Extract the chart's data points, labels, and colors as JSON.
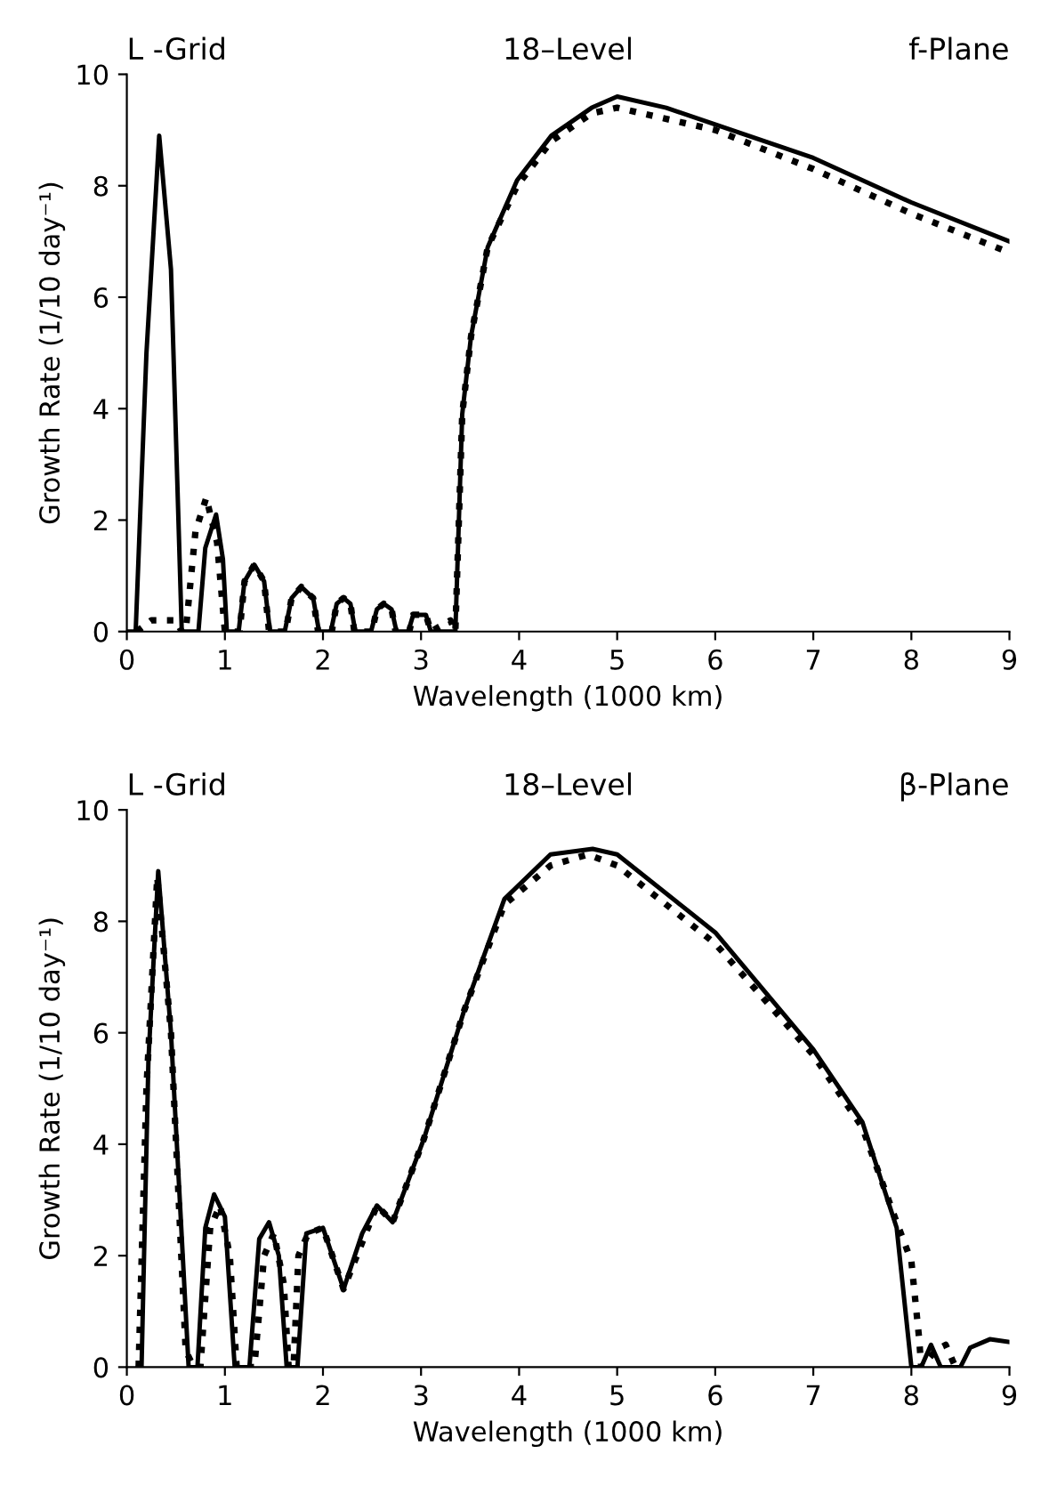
{
  "chart_data": [
    {
      "type": "line",
      "title": "18–Level",
      "annotations": [
        "L -Grid",
        "f-Plane"
      ],
      "xlabel": "Wavelength (1000 km)",
      "ylabel": "Growth Rate (1/10 day⁻¹)",
      "xlim": [
        0,
        9
      ],
      "ylim": [
        0,
        10
      ],
      "xticks": [
        0,
        1,
        2,
        3,
        4,
        5,
        6,
        7,
        8,
        9
      ],
      "yticks": [
        0,
        2,
        4,
        6,
        8,
        10
      ],
      "grid": false,
      "marker": "none",
      "series": [
        {
          "color": "#000000",
          "line_style": "solid",
          "x": [
            0,
            0.09,
            0.2,
            0.33,
            0.45,
            0.56,
            0.73,
            0.8,
            0.91,
            0.98,
            1.02,
            1.14,
            1.2,
            1.3,
            1.4,
            1.46,
            1.61,
            1.68,
            1.78,
            1.9,
            1.96,
            2.08,
            2.14,
            2.21,
            2.28,
            2.33,
            2.49,
            2.55,
            2.62,
            2.7,
            2.75,
            2.87,
            2.92,
            2.98,
            3.05,
            3.1,
            3.35,
            3.42,
            3.51,
            3.68,
            3.98,
            4.33,
            4.74,
            5.0,
            5.5,
            6,
            7,
            8,
            9
          ],
          "values": [
            0,
            0,
            5.0,
            8.9,
            6.5,
            0,
            0,
            1.5,
            2.1,
            1.3,
            0,
            0,
            0.9,
            1.2,
            0.9,
            0,
            0,
            0.6,
            0.8,
            0.6,
            0,
            0,
            0.5,
            0.6,
            0.5,
            0,
            0,
            0.4,
            0.5,
            0.4,
            0,
            0,
            0.3,
            0.3,
            0.3,
            0,
            0,
            3.9,
            5.3,
            6.9,
            8.1,
            8.9,
            9.4,
            9.6,
            9.4,
            9.1,
            8.5,
            7.7,
            7.0
          ]
        },
        {
          "color": "#000000",
          "line_style": "dotted",
          "x": [
            0.1,
            0.25,
            0.5,
            0.56,
            0.6,
            0.7,
            0.81,
            0.92,
            1.0,
            1.15,
            1.2,
            1.3,
            1.4,
            1.45,
            1.62,
            1.68,
            1.78,
            1.9,
            1.95,
            2.09,
            2.14,
            2.21,
            2.28,
            2.32,
            2.5,
            2.55,
            2.62,
            2.7,
            2.74,
            2.88,
            2.92,
            2.98,
            3.05,
            3.1,
            3.3,
            3.35,
            3.42,
            3.51,
            3.68,
            3.98,
            4.33,
            4.74,
            5.0,
            6,
            7,
            8,
            9
          ],
          "values": [
            0,
            0.2,
            0.2,
            0,
            0,
            1.8,
            2.4,
            1.6,
            0,
            0,
            0.9,
            1.2,
            0.9,
            0,
            0,
            0.6,
            0.8,
            0.6,
            0,
            0,
            0.5,
            0.6,
            0.5,
            0,
            0,
            0.4,
            0.5,
            0.4,
            0,
            0,
            0.3,
            0.3,
            0.3,
            0,
            0.2,
            0,
            3.9,
            5.3,
            6.9,
            8.0,
            8.8,
            9.3,
            9.4,
            9.0,
            8.3,
            7.5,
            6.8
          ]
        }
      ]
    },
    {
      "type": "line",
      "title": "18–Level",
      "annotations": [
        "L -Grid",
        "β-Plane"
      ],
      "xlabel": "Wavelength (1000 km)",
      "ylabel": "Growth Rate (1/10 day⁻¹)",
      "xlim": [
        0,
        9
      ],
      "ylim": [
        0,
        10
      ],
      "xticks": [
        0,
        1,
        2,
        3,
        4,
        5,
        6,
        7,
        8,
        9
      ],
      "yticks": [
        0,
        2,
        4,
        6,
        8,
        10
      ],
      "grid": false,
      "marker": "none",
      "series": [
        {
          "color": "#000000",
          "line_style": "solid",
          "x": [
            0.15,
            0.22,
            0.32,
            0.45,
            0.63,
            0.72,
            0.8,
            0.89,
            1.0,
            1.1,
            1.25,
            1.35,
            1.45,
            1.55,
            1.63,
            1.74,
            1.83,
            2.0,
            2.21,
            2.4,
            2.55,
            2.71,
            3.03,
            3.44,
            3.85,
            4.32,
            4.75,
            5.0,
            6,
            7,
            7.5,
            7.85,
            8.0,
            8.1,
            8.2,
            8.3,
            8.5,
            8.6,
            8.8,
            9
          ],
          "values": [
            0,
            5.5,
            8.9,
            6.0,
            0,
            0,
            2.5,
            3.1,
            2.7,
            0,
            0,
            2.3,
            2.6,
            2.0,
            0,
            0,
            2.4,
            2.5,
            1.4,
            2.4,
            2.9,
            2.6,
            4.1,
            6.4,
            8.4,
            9.2,
            9.3,
            9.2,
            7.8,
            5.7,
            4.4,
            2.5,
            0,
            0,
            0.4,
            0,
            0,
            0.35,
            0.5,
            0.45
          ]
        },
        {
          "color": "#000000",
          "line_style": "dotted",
          "x": [
            0.12,
            0.2,
            0.31,
            0.45,
            0.6,
            0.68,
            0.75,
            0.85,
            0.95,
            1.05,
            1.12,
            1.3,
            1.4,
            1.5,
            1.6,
            1.65,
            1.7,
            1.75,
            1.85,
            2.0,
            2.21,
            2.55,
            2.71,
            3.03,
            3.44,
            3.85,
            4.32,
            4.7,
            5.0,
            6,
            7,
            7.5,
            7.85,
            8.0,
            8.08,
            8.1,
            8.25,
            8.35,
            8.45
          ],
          "values": [
            0,
            5.0,
            8.8,
            6.0,
            0.3,
            0,
            0,
            2.5,
            2.9,
            2.0,
            0,
            0,
            2.0,
            2.4,
            1.5,
            0,
            0,
            2.0,
            2.4,
            2.5,
            1.4,
            2.9,
            2.6,
            4.1,
            6.4,
            8.3,
            9.0,
            9.2,
            9.0,
            7.6,
            5.6,
            4.3,
            2.6,
            1.9,
            0.5,
            0,
            0.3,
            0.4,
            0
          ]
        }
      ]
    }
  ]
}
